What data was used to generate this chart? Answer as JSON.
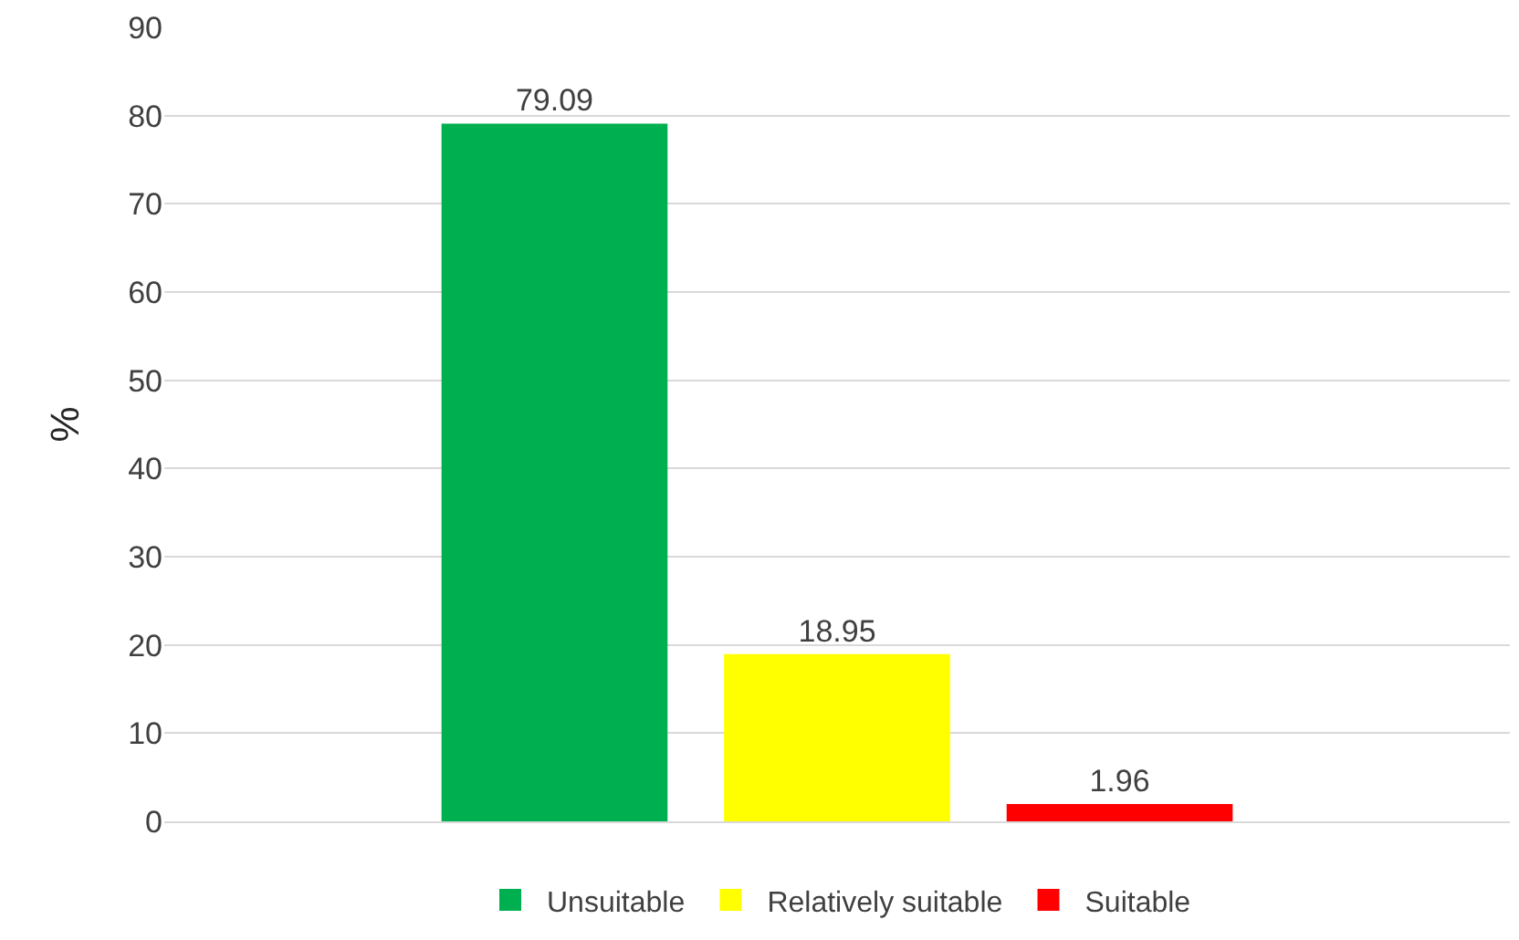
{
  "chart_data": {
    "type": "bar",
    "ylabel": "%",
    "categories": [
      null
    ],
    "series": [
      {
        "name": "Unsuitable",
        "color": "#00b050",
        "values": [
          79.09
        ]
      },
      {
        "name": "Relatively suitable",
        "color": "#ffff00",
        "values": [
          18.95
        ]
      },
      {
        "name": "Suitable",
        "color": "#ff0000",
        "values": [
          1.96
        ]
      }
    ],
    "ylim": [
      0,
      90
    ],
    "yticks": [
      0,
      10,
      20,
      30,
      40,
      50,
      60,
      70,
      80,
      90
    ],
    "grid": "y",
    "legend": "bottom",
    "data_labels": true
  }
}
